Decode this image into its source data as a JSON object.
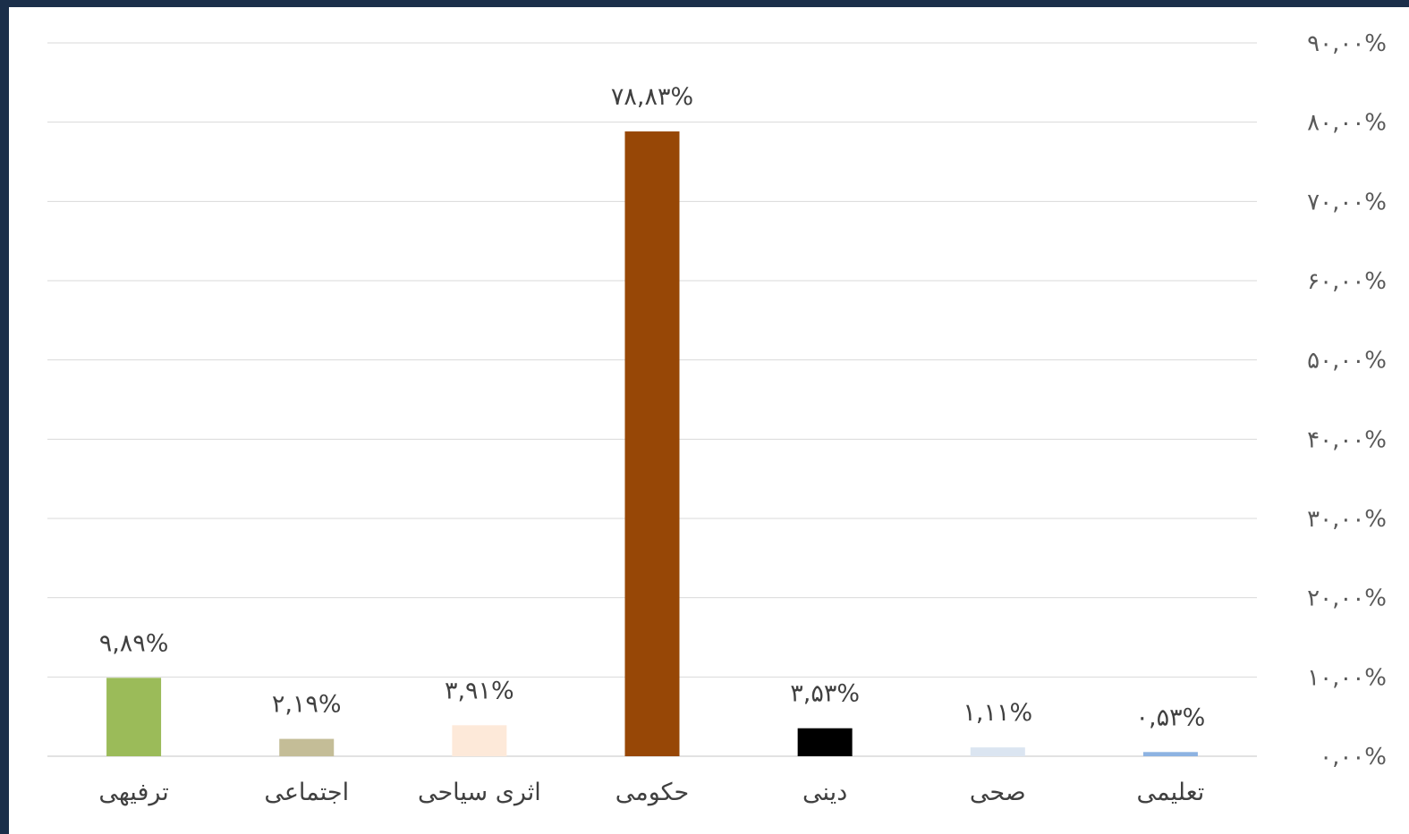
{
  "chart_data": {
    "type": "bar",
    "categories": [
      "ترفیهی",
      "اجتماعی",
      "اثری سیاحی",
      "حکومی",
      "دینی",
      "صحی",
      "تعلیمی"
    ],
    "values": [
      9.89,
      2.19,
      3.91,
      78.83,
      3.53,
      1.11,
      0.53
    ],
    "data_labels": [
      "۹,۸۹%",
      "۲,۱۹%",
      "۳,۹۱%",
      "۷۸,۸۳%",
      "۳,۵۳%",
      "۱,۱۱%",
      "۰,۵۳%"
    ],
    "bar_colors": [
      "#9bbb59",
      "#c4bd97",
      "#fde9d9",
      "#974706",
      "#000000",
      "#dbe5f1",
      "#8db3e2"
    ],
    "ylim": [
      0,
      90
    ],
    "y_ticks": [
      0,
      10,
      20,
      30,
      40,
      50,
      60,
      70,
      80,
      90
    ],
    "y_tick_labels": [
      "۰,۰۰%",
      "۱۰,۰۰%",
      "۲۰,۰۰%",
      "۳۰,۰۰%",
      "۴۰,۰۰%",
      "۵۰,۰۰%",
      "۶۰,۰۰%",
      "۷۰,۰۰%",
      "۸۰,۰۰%",
      "۹۰,۰۰%"
    ],
    "y_axis_position": "right",
    "grid": true,
    "legend": "none"
  }
}
